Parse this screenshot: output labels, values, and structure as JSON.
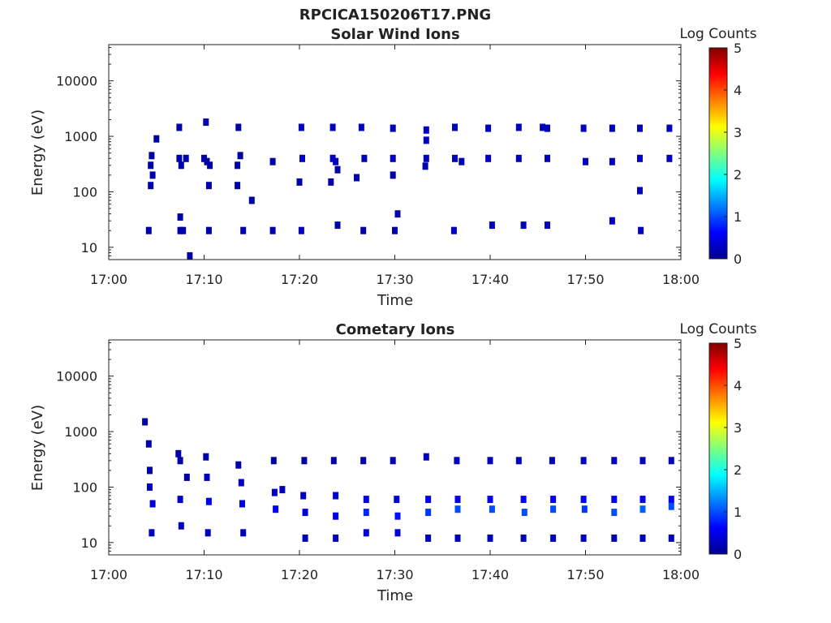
{
  "figure_title": "RPCICA150206T17.PNG",
  "chart_data": [
    {
      "type": "heatmap",
      "title": "Solar Wind Ions",
      "xlabel": "Time",
      "ylabel": "Energy (eV)",
      "x_ticks": [
        "17:00",
        "17:10",
        "17:20",
        "17:30",
        "17:40",
        "17:50",
        "18:00"
      ],
      "y_ticks": [
        "10",
        "100",
        "1000",
        "10000"
      ],
      "x_range": [
        "17:00",
        "18:00"
      ],
      "y_range": [
        6,
        45000
      ],
      "y_scale": "log",
      "colorbar": {
        "label": "Log Counts",
        "ticks": [
          "0",
          "1",
          "2",
          "3",
          "4",
          "5"
        ],
        "range": [
          0,
          5
        ],
        "colormap": "jet"
      },
      "cells": [
        [
          "17:04.2",
          20,
          0.2
        ],
        [
          "17:04.4",
          130,
          0.2
        ],
        [
          "17:04.4",
          300,
          0.2
        ],
        [
          "17:04.5",
          450,
          0.2
        ],
        [
          "17:04.6",
          200,
          0.2
        ],
        [
          "17:05.0",
          900,
          0.2
        ],
        [
          "17:07.4",
          1450,
          0.2
        ],
        [
          "17:07.4",
          400,
          0.2
        ],
        [
          "17:07.6",
          300,
          0.2
        ],
        [
          "17:07.5",
          35,
          0.2
        ],
        [
          "17:07.5",
          20,
          0.2
        ],
        [
          "17:07.8",
          20,
          0.2
        ],
        [
          "17:08.1",
          400,
          0.2
        ],
        [
          "17:08.5",
          7,
          0.2
        ],
        [
          "17:10.0",
          400,
          0.2
        ],
        [
          "17:10.2",
          1800,
          0.2
        ],
        [
          "17:10.3",
          350,
          0.2
        ],
        [
          "17:10.6",
          300,
          0.2
        ],
        [
          "17:10.5",
          20,
          0.2
        ],
        [
          "17:10.5",
          130,
          0.2
        ],
        [
          "17:13.6",
          1450,
          0.2
        ],
        [
          "17:13.5",
          300,
          0.2
        ],
        [
          "17:13.8",
          450,
          0.2
        ],
        [
          "17:14.1",
          20,
          0.2
        ],
        [
          "17:13.5",
          130,
          0.2
        ],
        [
          "17:15.0",
          70,
          0.2
        ],
        [
          "17:17.2",
          350,
          0.2
        ],
        [
          "17:17.2",
          20,
          0.2
        ],
        [
          "17:20.2",
          1450,
          0.3
        ],
        [
          "17:20.3",
          400,
          0.3
        ],
        [
          "17:20.2",
          20,
          0.3
        ],
        [
          "17:20.0",
          150,
          0.2
        ],
        [
          "17:23.5",
          1450,
          0.3
        ],
        [
          "17:23.5",
          400,
          0.3
        ],
        [
          "17:23.8",
          350,
          0.3
        ],
        [
          "17:24.0",
          250,
          0.2
        ],
        [
          "17:24.0",
          25,
          0.2
        ],
        [
          "17:23.3",
          150,
          0.2
        ],
        [
          "17:26.5",
          1450,
          0.3
        ],
        [
          "17:26.8",
          400,
          0.3
        ],
        [
          "17:26.7",
          20,
          0.2
        ],
        [
          "17:26.0",
          180,
          0.2
        ],
        [
          "17:29.8",
          1400,
          0.3
        ],
        [
          "17:29.8",
          400,
          0.3
        ],
        [
          "17:30.0",
          20,
          0.2
        ],
        [
          "17:30.3",
          40,
          0.2
        ],
        [
          "17:29.8",
          200,
          0.2
        ],
        [
          "17:33.3",
          1300,
          0.3
        ],
        [
          "17:33.3",
          850,
          0.3
        ],
        [
          "17:33.3",
          400,
          0.3
        ],
        [
          "17:33.2",
          290,
          0.2
        ],
        [
          "17:36.3",
          1450,
          0.3
        ],
        [
          "17:36.3",
          400,
          0.3
        ],
        [
          "17:37.0",
          350,
          0.3
        ],
        [
          "17:36.2",
          20,
          0.3
        ],
        [
          "17:39.8",
          1400,
          0.3
        ],
        [
          "17:39.8",
          400,
          0.3
        ],
        [
          "17:40.2",
          25,
          0.3
        ],
        [
          "17:43.0",
          1450,
          0.3
        ],
        [
          "17:43.0",
          400,
          0.3
        ],
        [
          "17:43.5",
          25,
          0.3
        ],
        [
          "17:45.5",
          1450,
          0.3
        ],
        [
          "17:46.0",
          1400,
          0.3
        ],
        [
          "17:46.0",
          400,
          0.3
        ],
        [
          "17:46.0",
          25,
          0.3
        ],
        [
          "17:49.8",
          1400,
          0.3
        ],
        [
          "17:50.0",
          350,
          0.3
        ],
        [
          "17:52.8",
          1400,
          0.3
        ],
        [
          "17:52.8",
          350,
          0.3
        ],
        [
          "17:52.8",
          30,
          0.3
        ],
        [
          "17:55.7",
          1400,
          0.3
        ],
        [
          "17:55.7",
          400,
          0.3
        ],
        [
          "17:55.7",
          105,
          0.3
        ],
        [
          "17:55.8",
          20,
          0.3
        ],
        [
          "17:58.8",
          1400,
          0.3
        ],
        [
          "17:58.8",
          400,
          0.3
        ]
      ]
    },
    {
      "type": "heatmap",
      "title": "Cometary Ions",
      "xlabel": "Time",
      "ylabel": "Energy (eV)",
      "x_ticks": [
        "17:00",
        "17:10",
        "17:20",
        "17:30",
        "17:40",
        "17:50",
        "18:00"
      ],
      "y_ticks": [
        "10",
        "100",
        "1000",
        "10000"
      ],
      "x_range": [
        "17:00",
        "18:00"
      ],
      "y_range": [
        6,
        45000
      ],
      "y_scale": "log",
      "colorbar": {
        "label": "Log Counts",
        "ticks": [
          "0",
          "1",
          "2",
          "3",
          "4",
          "5"
        ],
        "range": [
          0,
          5
        ],
        "colormap": "jet"
      },
      "cells": [
        [
          "17:03.8",
          1500,
          0.2
        ],
        [
          "17:04.2",
          600,
          0.2
        ],
        [
          "17:04.3",
          200,
          0.2
        ],
        [
          "17:04.3",
          100,
          0.3
        ],
        [
          "17:04.6",
          50,
          0.4
        ],
        [
          "17:04.5",
          15,
          0.3
        ],
        [
          "17:07.3",
          400,
          0.2
        ],
        [
          "17:07.5",
          300,
          0.2
        ],
        [
          "17:07.5",
          60,
          0.4
        ],
        [
          "17:07.6",
          20,
          0.3
        ],
        [
          "17:08.2",
          150,
          0.2
        ],
        [
          "17:10.2",
          350,
          0.2
        ],
        [
          "17:10.3",
          150,
          0.3
        ],
        [
          "17:10.5",
          55,
          0.5
        ],
        [
          "17:10.4",
          15,
          0.3
        ],
        [
          "17:13.6",
          250,
          0.2
        ],
        [
          "17:13.9",
          120,
          0.3
        ],
        [
          "17:14.0",
          50,
          0.5
        ],
        [
          "17:14.1",
          15,
          0.3
        ],
        [
          "17:17.3",
          300,
          0.2
        ],
        [
          "17:17.4",
          80,
          0.3
        ],
        [
          "17:17.5",
          40,
          0.6
        ],
        [
          "17:18.2",
          90,
          0.3
        ],
        [
          "17:20.5",
          300,
          0.2
        ],
        [
          "17:20.4",
          70,
          0.3
        ],
        [
          "17:20.6",
          35,
          0.5
        ],
        [
          "17:20.6",
          12,
          0.3
        ],
        [
          "17:23.6",
          300,
          0.2
        ],
        [
          "17:23.8",
          70,
          0.4
        ],
        [
          "17:23.8",
          30,
          0.5
        ],
        [
          "17:23.8",
          12,
          0.3
        ],
        [
          "17:26.7",
          300,
          0.2
        ],
        [
          "17:27.0",
          60,
          0.5
        ],
        [
          "17:27.0",
          35,
          0.8
        ],
        [
          "17:27.0",
          15,
          0.4
        ],
        [
          "17:29.8",
          300,
          0.3
        ],
        [
          "17:30.2",
          60,
          0.5
        ],
        [
          "17:30.3",
          30,
          0.7
        ],
        [
          "17:30.3",
          15,
          0.4
        ],
        [
          "17:33.3",
          350,
          0.3
        ],
        [
          "17:33.5",
          60,
          0.6
        ],
        [
          "17:33.5",
          35,
          0.9
        ],
        [
          "17:33.5",
          12,
          0.3
        ],
        [
          "17:36.5",
          300,
          0.3
        ],
        [
          "17:36.6",
          60,
          0.6
        ],
        [
          "17:36.6",
          40,
          1.0
        ],
        [
          "17:36.6",
          12,
          0.3
        ],
        [
          "17:40.0",
          300,
          0.3
        ],
        [
          "17:40.0",
          60,
          0.6
        ],
        [
          "17:40.2",
          40,
          1.0
        ],
        [
          "17:40.0",
          12,
          0.3
        ],
        [
          "17:43.0",
          300,
          0.3
        ],
        [
          "17:43.5",
          60,
          0.6
        ],
        [
          "17:43.6",
          35,
          1.0
        ],
        [
          "17:43.5",
          12,
          0.3
        ],
        [
          "17:46.5",
          300,
          0.3
        ],
        [
          "17:46.6",
          60,
          0.6
        ],
        [
          "17:46.6",
          40,
          1.0
        ],
        [
          "17:46.6",
          12,
          0.3
        ],
        [
          "17:49.8",
          300,
          0.3
        ],
        [
          "17:49.8",
          60,
          0.6
        ],
        [
          "17:49.9",
          40,
          0.9
        ],
        [
          "17:49.8",
          12,
          0.3
        ],
        [
          "17:53.0",
          300,
          0.3
        ],
        [
          "17:53.0",
          60,
          0.6
        ],
        [
          "17:53.0",
          35,
          1.0
        ],
        [
          "17:53.0",
          12,
          0.3
        ],
        [
          "17:56.0",
          300,
          0.3
        ],
        [
          "17:56.0",
          60,
          0.6
        ],
        [
          "17:56.0",
          40,
          1.1
        ],
        [
          "17:56.0",
          12,
          0.3
        ],
        [
          "17:59.0",
          300,
          0.3
        ],
        [
          "17:59.0",
          60,
          0.6
        ],
        [
          "17:59.0",
          45,
          1.0
        ],
        [
          "17:59.0",
          12,
          0.3
        ]
      ]
    }
  ]
}
